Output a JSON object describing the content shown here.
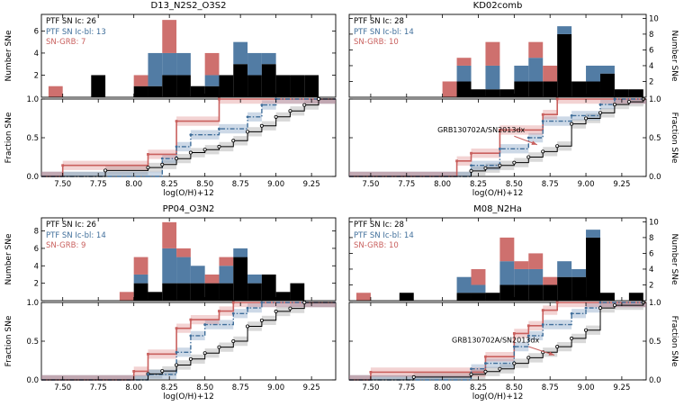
{
  "colors_note": "series colors: black = PTF SN Ic, blue = PTF SN Ic-bl, red = SN-GRB",
  "chart_data": {
    "type": "bar",
    "subtype": "stacked-histogram with empirical CDF (fraction) panels, 2x2 grid of metallicity calibrations",
    "xlabel": "log(O/H)+12",
    "hist_ylabel": "Number SNe",
    "frac_ylabel": "Fraction SNe",
    "xlim": [
      7.35,
      9.42
    ],
    "xticks": [
      "7.50",
      "7.75",
      "8.00",
      "8.25",
      "8.50",
      "8.75",
      "9.00",
      "9.25"
    ],
    "frac_yticks": [
      "0.0",
      "0.5",
      "1.0"
    ],
    "frac_ylim": [
      0.0,
      1.0
    ],
    "bin_start": 7.4,
    "bin_width": 0.1,
    "series_names": [
      "PTF SN Ic",
      "PTF SN Ic-bl",
      "SN-GRB"
    ],
    "colors": {
      "ic": "#000000",
      "icbl": "#3f6e9a",
      "grb": "#c9605e"
    },
    "panels": [
      {
        "title": "D13_N2S2_O3S2",
        "side": "left",
        "ymax": 7.5,
        "yticks": [
          2,
          4,
          6
        ],
        "legend": {
          "ic": "PTF SN Ic: 26",
          "icbl": "PTF SN Ic-bl: 13",
          "grb": "SN-GRB: 7"
        },
        "counts": {
          "ic": [
            0,
            0,
            0,
            2,
            0,
            0,
            1,
            1,
            2,
            2,
            1,
            1,
            2,
            3,
            2,
            3,
            2,
            2,
            2,
            0
          ],
          "icbl": [
            0,
            0,
            0,
            0,
            0,
            0,
            0,
            3,
            2,
            2,
            0,
            1,
            0,
            2,
            2,
            1,
            0,
            0,
            0,
            0
          ],
          "grb": [
            1,
            0,
            0,
            0,
            0,
            0,
            1,
            0,
            3,
            0,
            0,
            2,
            0,
            0,
            0,
            0,
            0,
            0,
            0,
            0
          ]
        },
        "annotation": null
      },
      {
        "title": "KD02comb",
        "side": "right",
        "ymax": 10.5,
        "yticks": [
          2,
          4,
          6,
          8,
          10
        ],
        "legend": {
          "ic": "PTF SN Ic: 28",
          "icbl": "PTF SN Ic-bl: 14",
          "grb": "SN-GRB: 10"
        },
        "counts": {
          "ic": [
            0,
            0,
            0,
            0,
            0,
            0,
            0,
            2,
            1,
            1,
            1,
            2,
            2,
            2,
            8,
            2,
            2,
            3,
            1,
            1
          ],
          "icbl": [
            0,
            0,
            0,
            0,
            0,
            0,
            0,
            2,
            0,
            3,
            0,
            2,
            3,
            0,
            1,
            0,
            2,
            1,
            0,
            0
          ],
          "grb": [
            0,
            0,
            0,
            0,
            0,
            0,
            2,
            1,
            0,
            3,
            0,
            0,
            2,
            2,
            0,
            0,
            0,
            0,
            0,
            0
          ]
        },
        "annotation": {
          "text": "GRB130702A/SN2013dx",
          "text_x": 8.27,
          "text_y": 0.57,
          "arrow": [
            8.5,
            0.52,
            8.66,
            0.41
          ]
        }
      },
      {
        "title": "PP04_O3N2",
        "side": "left",
        "ymax": 9.5,
        "yticks": [
          2,
          4,
          6,
          8
        ],
        "legend": {
          "ic": "PTF SN Ic: 26",
          "icbl": "PTF SN Ic-bl: 14",
          "grb": "SN-GRB: 9"
        },
        "counts": {
          "ic": [
            0,
            0,
            0,
            0,
            0,
            0,
            2,
            1,
            2,
            2,
            2,
            2,
            2,
            5,
            2,
            3,
            1,
            2,
            0,
            0
          ],
          "icbl": [
            0,
            0,
            0,
            0,
            0,
            0,
            1,
            0,
            4,
            3,
            2,
            0,
            2,
            1,
            1,
            0,
            0,
            0,
            0,
            0
          ],
          "grb": [
            0,
            0,
            0,
            0,
            0,
            1,
            2,
            0,
            3,
            1,
            0,
            1,
            1,
            0,
            0,
            0,
            0,
            0,
            0,
            0
          ]
        },
        "annotation": null
      },
      {
        "title": "M08_N2Ha",
        "side": "right",
        "ymax": 10.5,
        "yticks": [
          2,
          4,
          6,
          8,
          10
        ],
        "legend": {
          "ic": "PTF SN Ic: 28",
          "icbl": "PTF SN Ic-bl: 14",
          "grb": "SN-GRB: 10"
        },
        "counts": {
          "ic": [
            0,
            0,
            0,
            1,
            0,
            0,
            0,
            1,
            1,
            1,
            2,
            2,
            2,
            2,
            3,
            3,
            8,
            1,
            0,
            1
          ],
          "icbl": [
            0,
            0,
            0,
            0,
            0,
            0,
            0,
            2,
            1,
            0,
            3,
            2,
            2,
            0,
            2,
            1,
            1,
            0,
            0,
            0
          ],
          "grb": [
            1,
            0,
            0,
            0,
            0,
            0,
            0,
            0,
            2,
            0,
            3,
            1,
            2,
            1,
            0,
            0,
            0,
            0,
            0,
            0
          ]
        },
        "annotation": {
          "text": "GRB130702A/SN2013dx",
          "text_x": 8.37,
          "text_y": 0.48,
          "arrow": [
            8.6,
            0.43,
            8.78,
            0.32
          ]
        }
      }
    ]
  }
}
